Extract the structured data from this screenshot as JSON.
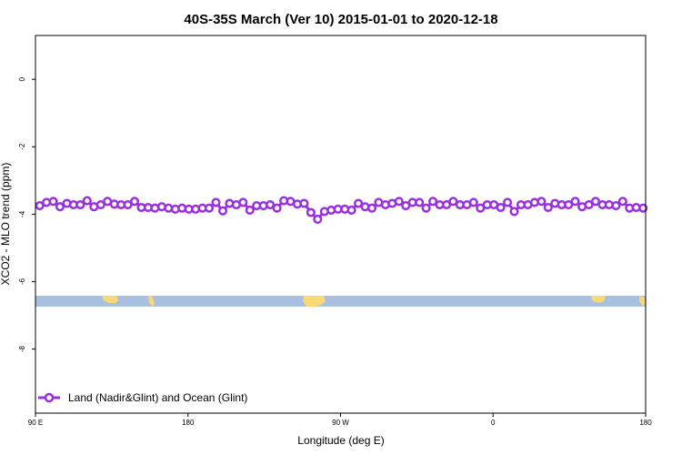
{
  "chart_data": {
    "type": "line",
    "title": "40S-35S March (Ver 10)   2015-01-01 to 2020-12-18",
    "xlabel": "Longitude (deg E)",
    "ylabel": "XCO2 - MLO trend (ppm)",
    "xlim": [
      90,
      450
    ],
    "ylim": [
      -9.9,
      1.3
    ],
    "x_ticks": [
      {
        "value": 90,
        "label": "90 E"
      },
      {
        "value": 180,
        "label": "180"
      },
      {
        "value": 270,
        "label": "90 W"
      },
      {
        "value": 360,
        "label": "0"
      },
      {
        "value": 450,
        "label": "180"
      }
    ],
    "y_ticks": [
      {
        "value": 0,
        "label": "0"
      },
      {
        "value": -2,
        "label": "-2"
      },
      {
        "value": -4,
        "label": "-4"
      },
      {
        "value": -6,
        "label": "-6"
      },
      {
        "value": -8,
        "label": "-8"
      }
    ],
    "grid": false,
    "legend_position": "bottom-left",
    "series": [
      {
        "name": "Land (Nadir&Glint) and Ocean (Glint)",
        "color": "#9b30e0",
        "marker": "open-circle",
        "x": [
          92.5,
          96.5,
          100.5,
          104.5,
          108.5,
          112.5,
          116.5,
          120.5,
          124.5,
          128.5,
          132.5,
          136.5,
          140.5,
          144.5,
          148.5,
          152.5,
          156.5,
          160.5,
          164.5,
          168.5,
          172.5,
          176.5,
          180.5,
          184.5,
          188.5,
          192.5,
          196.5,
          200.5,
          204.5,
          208.5,
          212.5,
          216.5,
          220.5,
          224.5,
          228.5,
          232.5,
          236.5,
          240.5,
          244.5,
          248.5,
          252.5,
          256.5,
          260.5,
          264.5,
          268.5,
          272.5,
          276.5,
          280.5,
          284.5,
          288.5,
          292.5,
          296.5,
          300.5,
          304.5,
          308.5,
          312.5,
          316.5,
          320.5,
          324.5,
          328.5,
          332.5,
          336.5,
          340.5,
          344.5,
          348.5,
          352.5,
          356.5,
          360.5,
          364.5,
          368.5,
          372.5,
          376.5,
          380.5,
          384.5,
          388.5,
          392.5,
          396.5,
          400.5,
          404.5,
          408.5,
          412.5,
          416.5,
          420.5,
          424.5,
          428.5,
          432.5,
          436.5,
          440.5,
          444.5,
          448.5
        ],
        "y": [
          -3.75,
          -3.65,
          -3.62,
          -3.78,
          -3.68,
          -3.72,
          -3.72,
          -3.6,
          -3.78,
          -3.72,
          -3.62,
          -3.7,
          -3.72,
          -3.72,
          -3.62,
          -3.8,
          -3.8,
          -3.82,
          -3.78,
          -3.82,
          -3.85,
          -3.82,
          -3.85,
          -3.85,
          -3.82,
          -3.82,
          -3.65,
          -3.9,
          -3.68,
          -3.72,
          -3.65,
          -3.88,
          -3.75,
          -3.75,
          -3.72,
          -3.82,
          -3.6,
          -3.62,
          -3.7,
          -3.68,
          -3.95,
          -4.15,
          -3.92,
          -3.88,
          -3.85,
          -3.85,
          -3.88,
          -3.68,
          -3.78,
          -3.82,
          -3.65,
          -3.72,
          -3.68,
          -3.62,
          -3.75,
          -3.65,
          -3.65,
          -3.82,
          -3.62,
          -3.72,
          -3.72,
          -3.62,
          -3.72,
          -3.72,
          -3.65,
          -3.82,
          -3.72,
          -3.72,
          -3.8,
          -3.65,
          -3.92,
          -3.72,
          -3.72,
          -3.65,
          -3.62,
          -3.8,
          -3.68,
          -3.72,
          -3.72,
          -3.62,
          -3.78,
          -3.72,
          -3.62,
          -3.72,
          -3.72,
          -3.75,
          -3.62,
          -3.82,
          -3.8,
          -3.82
        ]
      }
    ]
  },
  "colors": {
    "series": "#9b30e0",
    "ocean_band": "#a9bfe0",
    "land": "#f9d876",
    "axis": "#000000"
  }
}
